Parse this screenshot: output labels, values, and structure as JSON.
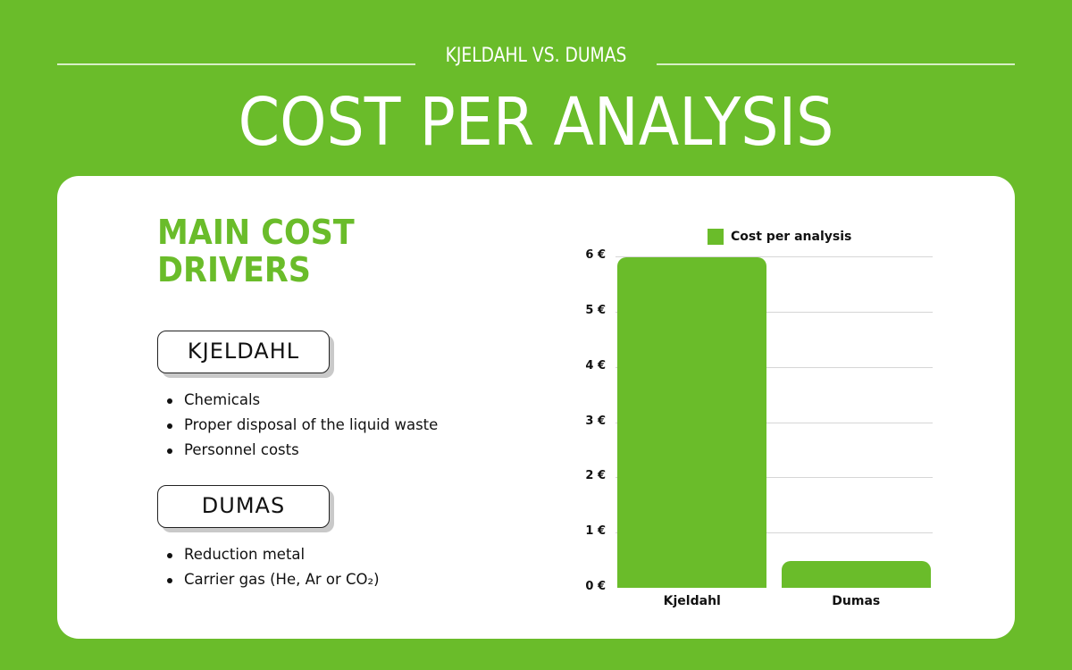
{
  "header": {
    "subtitle": "KJELDAHL VS. DUMAS",
    "title": "COST PER ANALYSIS"
  },
  "colors": {
    "brand_green": "#6abc2a",
    "card_background": "#ffffff",
    "text": "#111111"
  },
  "left_panel": {
    "section_title_line1": "MAIN COST",
    "section_title_line2": "DRIVERS",
    "groups": [
      {
        "label": "KJELDAHL",
        "items": [
          "Chemicals",
          "Proper disposal of the liquid waste",
          "Personnel costs"
        ]
      },
      {
        "label": "DUMAS",
        "items": [
          "Reduction metal",
          "Carrier gas (He, Ar or CO₂)"
        ]
      }
    ]
  },
  "chart_data": {
    "type": "bar",
    "title": "",
    "categories": [
      "Kjeldahl",
      "Dumas"
    ],
    "series": [
      {
        "name": "Cost per analysis",
        "values": [
          5.98,
          0.48
        ]
      }
    ],
    "values": [
      5.98,
      0.48
    ],
    "xlabel": "",
    "ylabel": "",
    "ylim": [
      0,
      6
    ],
    "yticks": [
      "0 €",
      "1 €",
      "2 €",
      "3 €",
      "4 €",
      "5 €",
      "6 €"
    ],
    "grid": true,
    "legend_position": "top",
    "unit": "€"
  }
}
